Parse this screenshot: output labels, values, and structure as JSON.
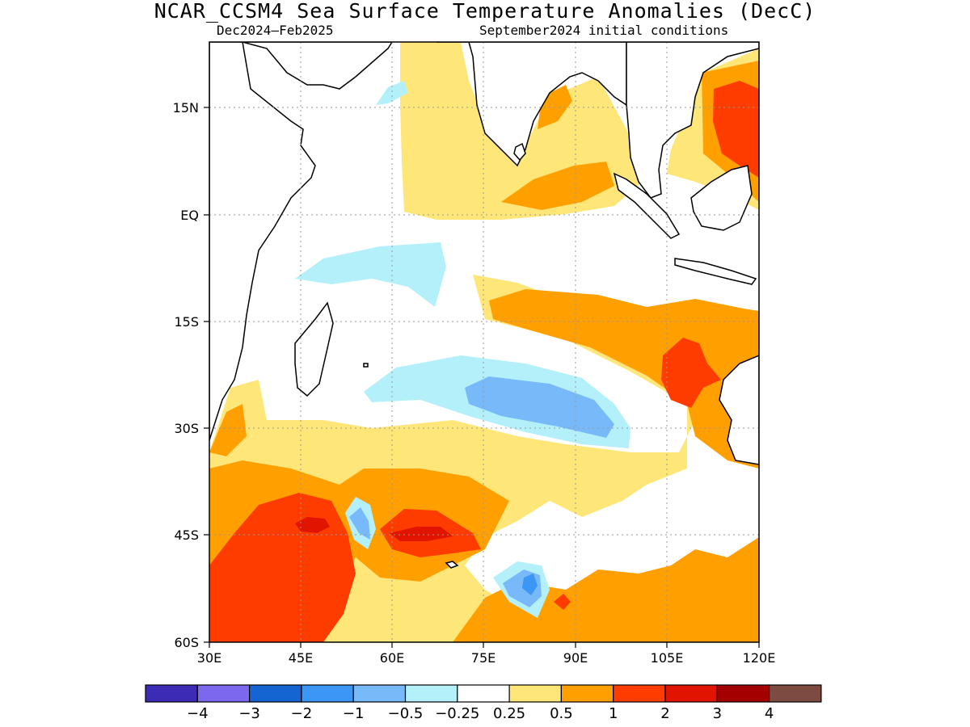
{
  "title": "NCAR_CCSM4 Sea Surface Temperature Anomalies (DecC)",
  "subtitle_left": "Dec2024–Feb2025",
  "subtitle_right": "September2024 initial conditions",
  "lat_labels": [
    "15N",
    "EQ",
    "15S",
    "30S",
    "45S",
    "60S"
  ],
  "lon_labels": [
    "30E",
    "45E",
    "60E",
    "75E",
    "90E",
    "105E",
    "120E"
  ],
  "colorbar": {
    "colors": [
      "#3b2bb5",
      "#7b68ee",
      "#1464d2",
      "#3c96f5",
      "#78b9fa",
      "#b4f0fa",
      "#ffffff",
      "#ffe678",
      "#ffa000",
      "#ff3c00",
      "#e11400",
      "#a50000",
      "#7d4b41"
    ],
    "labels": [
      "−4",
      "−3",
      "−2",
      "−1",
      "−0.5",
      "−0.25",
      "0.25",
      "0.5",
      "1",
      "2",
      "3",
      "4"
    ]
  },
  "palette": {
    "cool_faint": "#b4f0fa",
    "cool_light": "#78b9fa",
    "cool_mid": "#3c96f5",
    "warm_faint": "#ffe678",
    "warm_light": "#ffa000",
    "warm_mid": "#ff3c00",
    "warm_strong": "#e11400"
  }
}
